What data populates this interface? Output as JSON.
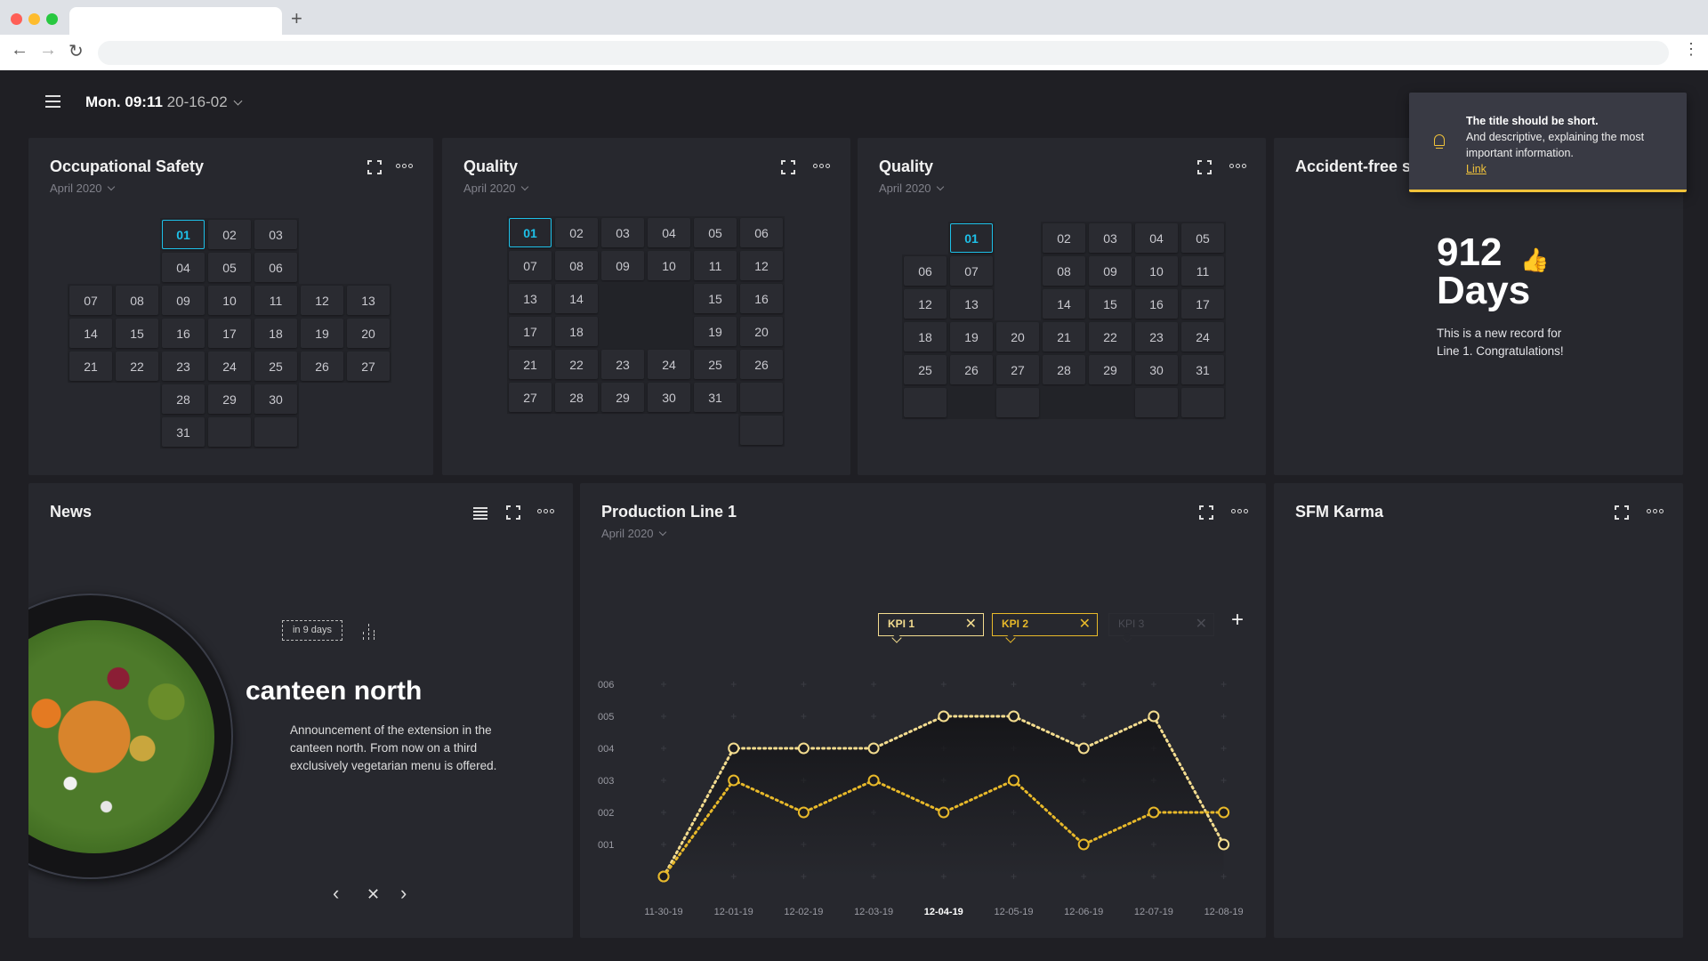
{
  "browser": {
    "new_tab": "+",
    "back": "←",
    "forward": "→",
    "reload": "↻",
    "menu": "⋮",
    "lights": [
      "#ff5f57",
      "#febc2e",
      "#28c840"
    ]
  },
  "header": {
    "day_time": "Mon. 09:11",
    "date": "20-16-02"
  },
  "colors": {
    "accent": "#1ec0e8",
    "kpi1": "#f3dc8f",
    "kpi2": "#e8b92a",
    "notify": "#f0c23a"
  },
  "cards": {
    "safety": {
      "title": "Occupational Safety",
      "month": "April 2020",
      "selected": "01",
      "rows": [
        [
          "-",
          "-",
          "01",
          "02",
          "03",
          "-",
          "-"
        ],
        [
          "-",
          "-",
          "04",
          "05",
          "06",
          "-",
          "-"
        ],
        [
          "07",
          "08",
          "09",
          "10",
          "11",
          "12",
          "13"
        ],
        [
          "14",
          "15",
          "16",
          "17",
          "18",
          "19",
          "20"
        ],
        [
          "21",
          "22",
          "23",
          "24",
          "25",
          "26",
          "27"
        ],
        [
          "-",
          "-",
          "28",
          "29",
          "30",
          "-",
          "-"
        ],
        [
          "-",
          "-",
          "31",
          "",
          "",
          "-",
          "-"
        ]
      ]
    },
    "quality1": {
      "title": "Quality",
      "month": "April 2020",
      "selected": "01",
      "rows": [
        [
          "01",
          "02",
          "03",
          "04",
          "05",
          "06"
        ],
        [
          "07",
          "08",
          "09",
          "10",
          "11",
          "12"
        ],
        [
          "13",
          "14",
          "#",
          "#",
          "15",
          "16"
        ],
        [
          "17",
          "18",
          "#",
          "#",
          "19",
          "20"
        ],
        [
          "21",
          "22",
          "23",
          "24",
          "25",
          "26"
        ],
        [
          "27",
          "28",
          "29",
          "30",
          "31",
          ""
        ],
        [
          "-",
          "-",
          "-",
          "-",
          "-",
          ""
        ]
      ]
    },
    "quality2": {
      "title": "Quality",
      "month": "April 2020",
      "selected": "01",
      "rows": [
        [
          "-",
          "01",
          "-",
          "02",
          "03",
          "04",
          "05"
        ],
        [
          "06",
          "07",
          "-",
          "08",
          "09",
          "10",
          "11"
        ],
        [
          "12",
          "13",
          "-",
          "14",
          "15",
          "16",
          "17"
        ],
        [
          "18",
          "19",
          "20",
          "21",
          "22",
          "23",
          "24"
        ],
        [
          "25",
          "26",
          "27",
          "28",
          "29",
          "30",
          "31"
        ],
        [
          "",
          "#",
          "",
          "#",
          "#",
          "",
          ""
        ]
      ]
    },
    "accident": {
      "title": "Accident-free si",
      "days": "912",
      "days_unit": "Days",
      "thumb_icon": "thumbs-up-icon",
      "message": "This is a new record for Line 1. Congratulations!"
    },
    "news": {
      "title": "News",
      "badge": "in 9 days",
      "headline": "canteen north",
      "body": "Announcement of the extension in the canteen north. From now on a third exclusively vegetarian menu is offered.",
      "prev": "‹",
      "close": "✕",
      "next": "›"
    },
    "production": {
      "title": "Production Line 1",
      "month": "April 2020",
      "chips": [
        {
          "label": "KPI 1",
          "close": "✕"
        },
        {
          "label": "KPI 2",
          "close": "✕"
        },
        {
          "label": "KPI 3",
          "close": "✕"
        }
      ],
      "add": "+"
    },
    "karma": {
      "title": "SFM Karma"
    }
  },
  "notification": {
    "title": "The title should be short.",
    "body": "And descriptive, explaining the most important information.",
    "link": "Link"
  },
  "chart_data": {
    "type": "line",
    "x": [
      "11-30-19",
      "12-01-19",
      "12-02-19",
      "12-03-19",
      "12-04-19",
      "12-05-19",
      "12-06-19",
      "12-07-19",
      "12-08-19"
    ],
    "highlighted_x": "12-04-19",
    "ytick_labels": [
      "001",
      "002",
      "003",
      "004",
      "005",
      "006"
    ],
    "ylim": [
      0,
      6
    ],
    "grid": "plus markers",
    "series": [
      {
        "name": "KPI 1",
        "color": "#f3dc8f",
        "values": [
          0,
          4,
          4,
          4,
          5,
          5,
          4,
          5,
          1
        ]
      },
      {
        "name": "KPI 2",
        "color": "#e8b92a",
        "values": [
          0,
          3,
          2,
          3,
          2,
          3,
          1,
          2,
          2
        ]
      }
    ]
  }
}
